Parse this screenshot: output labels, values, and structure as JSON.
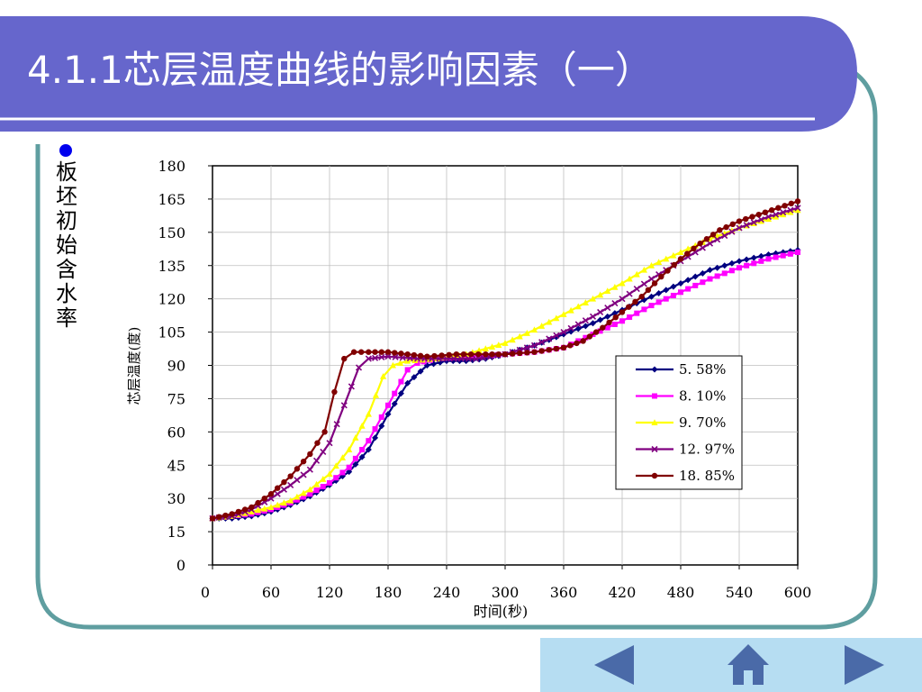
{
  "slide": {
    "title": "4.1.1芯层温度曲线的影响因素（一）",
    "bullet_text": "板坯初始含水率"
  },
  "colors": {
    "title_bar": "#6666cc",
    "frame": "#5f9ea0",
    "nav_bar": "#b6ddf2",
    "nav_arrow": "#4a6aa8"
  },
  "nav": {
    "prev_icon": "left-triangle",
    "home_icon": "house",
    "next_icon": "right-triangle"
  },
  "chart_data": {
    "type": "line",
    "title": "",
    "xlabel": "时间(秒)",
    "ylabel": "芯层温度(度)",
    "xlim": [
      0,
      600
    ],
    "ylim": [
      0,
      180
    ],
    "xticks": [
      0,
      60,
      120,
      180,
      240,
      300,
      360,
      420,
      480,
      540,
      600
    ],
    "yticks": [
      0,
      15,
      30,
      45,
      60,
      75,
      90,
      105,
      120,
      135,
      150,
      165,
      180
    ],
    "grid": true,
    "legend_position": "right-middle",
    "series": [
      {
        "name": "5. 58%",
        "color": "#000080",
        "marker": "diamond",
        "points": [
          [
            0,
            21
          ],
          [
            20,
            21
          ],
          [
            40,
            22
          ],
          [
            60,
            24
          ],
          [
            80,
            27
          ],
          [
            100,
            31
          ],
          [
            120,
            36
          ],
          [
            140,
            42
          ],
          [
            160,
            52
          ],
          [
            180,
            68
          ],
          [
            200,
            82
          ],
          [
            220,
            90
          ],
          [
            240,
            92
          ],
          [
            260,
            92
          ],
          [
            280,
            93
          ],
          [
            300,
            95
          ],
          [
            330,
            99
          ],
          [
            360,
            104
          ],
          [
            390,
            109
          ],
          [
            420,
            115
          ],
          [
            450,
            121
          ],
          [
            480,
            127
          ],
          [
            510,
            133
          ],
          [
            540,
            137
          ],
          [
            570,
            140
          ],
          [
            600,
            142
          ]
        ]
      },
      {
        "name": "8. 10%",
        "color": "#ff00ff",
        "marker": "square",
        "points": [
          [
            0,
            21
          ],
          [
            20,
            22
          ],
          [
            40,
            23
          ],
          [
            60,
            25
          ],
          [
            80,
            28
          ],
          [
            100,
            32
          ],
          [
            120,
            37
          ],
          [
            140,
            44
          ],
          [
            160,
            56
          ],
          [
            180,
            72
          ],
          [
            200,
            88
          ],
          [
            210,
            91
          ],
          [
            230,
            93
          ],
          [
            260,
            94
          ],
          [
            300,
            95
          ],
          [
            330,
            96
          ],
          [
            360,
            98
          ],
          [
            390,
            104
          ],
          [
            420,
            110
          ],
          [
            450,
            117
          ],
          [
            480,
            123
          ],
          [
            510,
            129
          ],
          [
            540,
            134
          ],
          [
            570,
            138
          ],
          [
            600,
            141
          ]
        ]
      },
      {
        "name": "9. 70%",
        "color": "#ffff00",
        "marker": "triangle",
        "points": [
          [
            0,
            21
          ],
          [
            20,
            22
          ],
          [
            40,
            24
          ],
          [
            60,
            26
          ],
          [
            80,
            29
          ],
          [
            100,
            34
          ],
          [
            120,
            41
          ],
          [
            140,
            52
          ],
          [
            160,
            68
          ],
          [
            175,
            85
          ],
          [
            185,
            90
          ],
          [
            200,
            92
          ],
          [
            230,
            93
          ],
          [
            260,
            95
          ],
          [
            300,
            100
          ],
          [
            330,
            106
          ],
          [
            360,
            113
          ],
          [
            390,
            120
          ],
          [
            420,
            127
          ],
          [
            450,
            135
          ],
          [
            480,
            141
          ],
          [
            510,
            147
          ],
          [
            540,
            152
          ],
          [
            570,
            156
          ],
          [
            600,
            160
          ]
        ]
      },
      {
        "name": "12. 97%",
        "color": "#800080",
        "marker": "x",
        "points": [
          [
            0,
            21
          ],
          [
            20,
            22
          ],
          [
            40,
            25
          ],
          [
            60,
            30
          ],
          [
            80,
            36
          ],
          [
            100,
            43
          ],
          [
            120,
            55
          ],
          [
            135,
            72
          ],
          [
            150,
            89
          ],
          [
            160,
            93
          ],
          [
            180,
            94
          ],
          [
            210,
            93
          ],
          [
            240,
            93
          ],
          [
            270,
            93
          ],
          [
            300,
            95
          ],
          [
            330,
            99
          ],
          [
            360,
            105
          ],
          [
            390,
            112
          ],
          [
            420,
            120
          ],
          [
            450,
            129
          ],
          [
            480,
            137
          ],
          [
            510,
            145
          ],
          [
            540,
            152
          ],
          [
            570,
            157
          ],
          [
            600,
            161
          ]
        ]
      },
      {
        "name": "18. 85%",
        "color": "#800000",
        "marker": "circle",
        "points": [
          [
            0,
            21
          ],
          [
            20,
            23
          ],
          [
            40,
            26
          ],
          [
            60,
            32
          ],
          [
            80,
            40
          ],
          [
            100,
            50
          ],
          [
            115,
            60
          ],
          [
            125,
            78
          ],
          [
            135,
            93
          ],
          [
            145,
            96
          ],
          [
            160,
            96
          ],
          [
            180,
            96
          ],
          [
            200,
            95
          ],
          [
            220,
            94
          ],
          [
            250,
            95
          ],
          [
            280,
            95
          ],
          [
            300,
            95
          ],
          [
            330,
            96
          ],
          [
            360,
            98
          ],
          [
            380,
            101
          ],
          [
            400,
            107
          ],
          [
            420,
            114
          ],
          [
            440,
            121
          ],
          [
            460,
            130
          ],
          [
            480,
            138
          ],
          [
            500,
            145
          ],
          [
            520,
            151
          ],
          [
            540,
            155
          ],
          [
            560,
            158
          ],
          [
            580,
            161
          ],
          [
            600,
            164
          ]
        ]
      }
    ]
  }
}
